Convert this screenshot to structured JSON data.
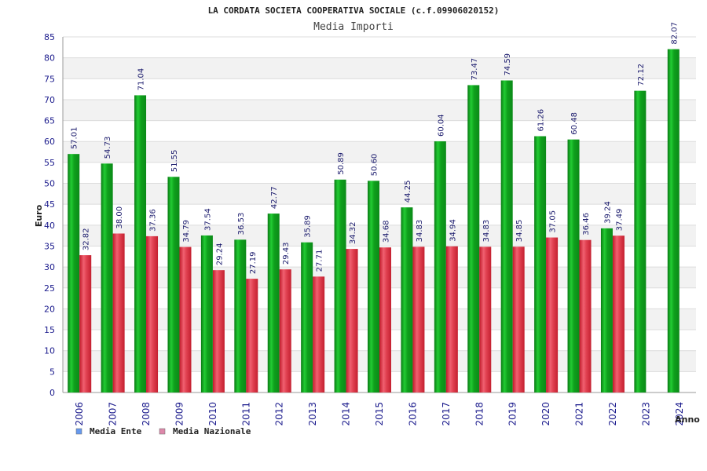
{
  "chart_data": {
    "type": "bar",
    "title": "LA CORDATA SOCIETA COOPERATIVA SOCIALE (c.f.09906020152)",
    "subtitle": "Media Importi",
    "ylabel": "Euro",
    "xlabel": "Anno",
    "ylim": [
      0,
      85
    ],
    "ytick_step": 5,
    "grid": true,
    "legend_position": "bottom-left",
    "categories": [
      "2006",
      "2007",
      "2008",
      "2009",
      "2010",
      "2011",
      "2012",
      "2013",
      "2014",
      "2015",
      "2016",
      "2017",
      "2018",
      "2019",
      "2020",
      "2021",
      "2022",
      "2023",
      "2024"
    ],
    "series": [
      {
        "name": "Media Ente",
        "legend_color": "#6699ee",
        "bar_color": "#11aa22",
        "values": [
          57.01,
          54.73,
          71.04,
          51.55,
          37.54,
          36.53,
          42.77,
          35.89,
          50.89,
          50.6,
          44.25,
          60.04,
          73.47,
          74.59,
          61.26,
          60.48,
          39.24,
          72.12,
          82.07
        ],
        "labels": [
          "57.01",
          "54.73",
          "71.04",
          "51.55",
          "37.54",
          "36.53",
          "42.77",
          "35.89",
          "50.89",
          "50.60",
          "44.25",
          "60.04",
          "73.47",
          "74.59",
          "61.26",
          "60.48",
          "39.24",
          "72.12",
          "82.07"
        ]
      },
      {
        "name": "Media Nazionale",
        "legend_color": "#dd88aa",
        "bar_color": "#dd3344",
        "values": [
          32.82,
          38.0,
          37.36,
          34.79,
          29.24,
          27.19,
          29.43,
          27.71,
          34.32,
          34.68,
          34.83,
          34.94,
          34.83,
          34.85,
          37.05,
          36.46,
          37.49,
          null,
          null
        ],
        "labels": [
          "32.82",
          "38.00",
          "37.36",
          "34.79",
          "29.24",
          "27.19",
          "29.43",
          "27.71",
          "34.32",
          "34.68",
          "34.83",
          "34.94",
          "34.83",
          "34.85",
          "37.05",
          "36.46",
          "37.49",
          "",
          ""
        ]
      }
    ]
  }
}
